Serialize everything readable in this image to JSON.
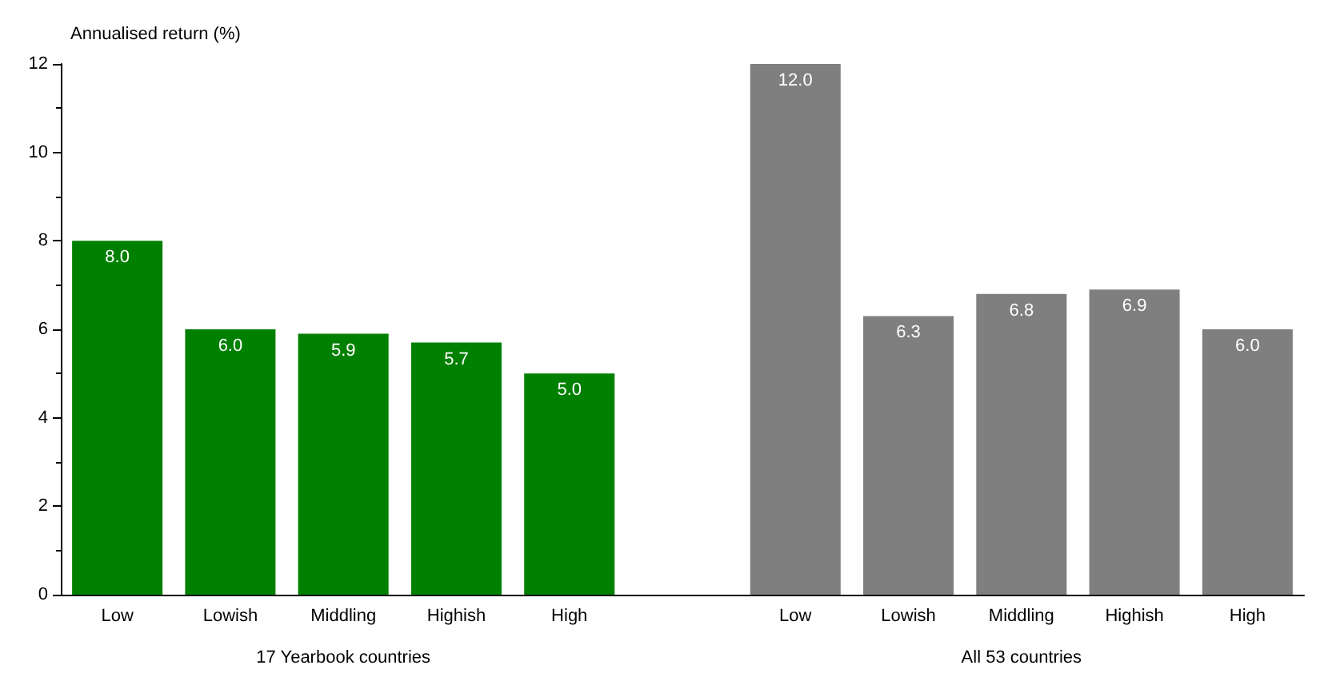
{
  "chart_data": {
    "type": "bar",
    "ylabel": "Annualised return (%)",
    "categories": [
      "Low",
      "Lowish",
      "Middling",
      "Highish",
      "High",
      null,
      "Low",
      "Lowish",
      "Middling",
      "Highish",
      "High"
    ],
    "series": [
      {
        "color": "#008000",
        "values": [
          8.0,
          6.0,
          5.9,
          5.7,
          5.0,
          null,
          null,
          null,
          null,
          null,
          null
        ],
        "value_labels": [
          "8.0",
          "6.0",
          "5.9",
          "5.7",
          "5.0",
          null,
          null,
          null,
          null,
          null,
          null
        ]
      },
      {
        "color": "#7f7f7f",
        "values": [
          null,
          null,
          null,
          null,
          null,
          null,
          12.0,
          6.3,
          6.8,
          6.9,
          6.0
        ],
        "value_labels": [
          null,
          null,
          null,
          null,
          null,
          null,
          "12.0",
          "6.3",
          "6.8",
          "6.9",
          "6.0"
        ]
      }
    ],
    "ylim": [
      0,
      12
    ],
    "yticks": [
      0,
      2,
      4,
      6,
      8,
      10,
      12
    ],
    "annotations": [
      "17 Yearbook countries",
      "All 53 countries"
    ]
  }
}
